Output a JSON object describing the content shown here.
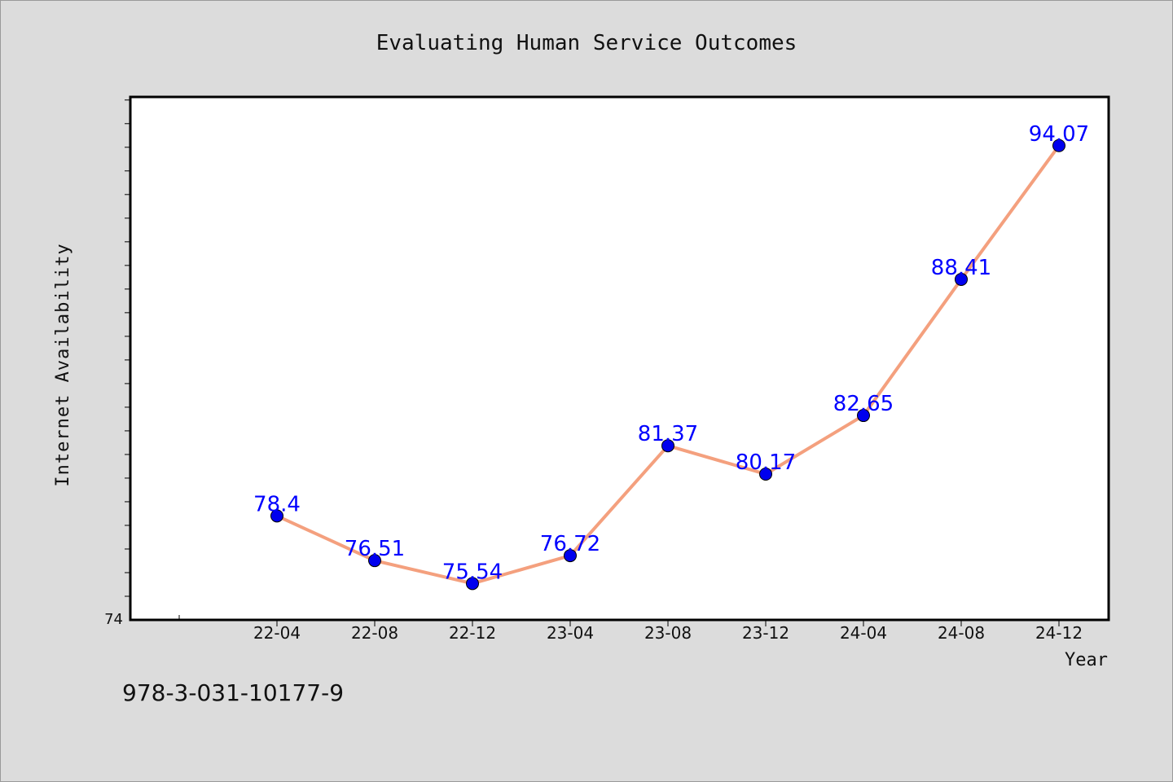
{
  "chart_data": {
    "type": "line",
    "title": "Evaluating Human Service Outcomes",
    "xlabel": "Year",
    "ylabel": "Internet Availability",
    "categories": [
      "22-04",
      "22-08",
      "22-12",
      "23-04",
      "23-08",
      "23-12",
      "24-04",
      "24-08",
      "24-12"
    ],
    "x_tick_labels": [
      "22-04",
      "22-08",
      "22-12",
      "23-04",
      "23-08",
      "23-12",
      "24-04",
      "24-08",
      "24-12"
    ],
    "y_tick_labels": [
      "74"
    ],
    "series": [
      {
        "values": [
          78.4,
          76.51,
          75.54,
          76.72,
          81.37,
          80.17,
          82.65,
          88.41,
          94.07
        ],
        "labels": [
          "78.4",
          "76.51",
          "75.54",
          "76.72",
          "81.37",
          "80.17",
          "82.65",
          "88.41",
          "94.07"
        ]
      }
    ],
    "ylim": [
      74,
      96.13
    ],
    "grid": false,
    "colors": {
      "line": "#f4a07e",
      "marker": "#0000ee",
      "data_label": "#0000ff",
      "plot_background": "#ffffff",
      "page_background": "#dcdcdc"
    }
  },
  "footer": {
    "isbn": "978-3-031-10177-9"
  }
}
